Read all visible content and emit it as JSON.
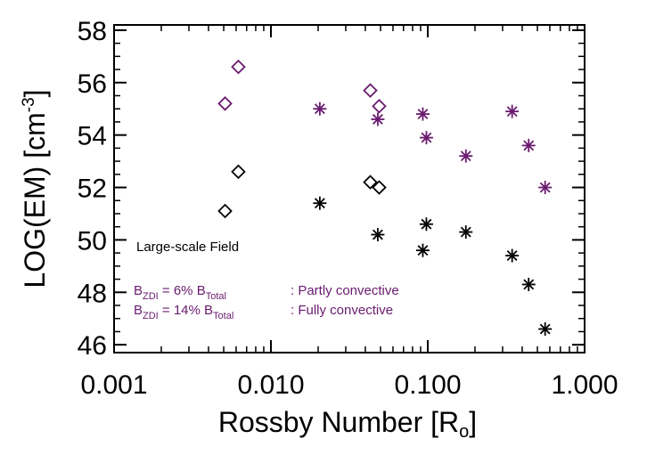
{
  "chart_data": {
    "type": "scatter",
    "xscale": "log",
    "xlim": [
      0.001,
      1.0
    ],
    "ylim": [
      45.7,
      58.2
    ],
    "xticks": [
      0.001,
      0.01,
      0.1,
      1.0
    ],
    "xtick_labels": [
      "0.001",
      "0.010",
      "0.100",
      "1.000"
    ],
    "yticks": [
      46,
      48,
      50,
      52,
      54,
      56,
      58
    ],
    "ytick_labels": [
      "46",
      "48",
      "50",
      "52",
      "54",
      "56",
      "58"
    ],
    "xlabel": "Rossby Number [R",
    "xlabel_sub": "o",
    "xlabel_end": "]",
    "ylabel": "LOG(EM) [cm",
    "ylabel_sup": "-3",
    "ylabel_end": "]",
    "series": [
      {
        "name": "Partly convective (large-scale field)",
        "color": "#000000",
        "marker": "asterisk",
        "points": [
          {
            "x": 0.0205,
            "y": 51.4
          },
          {
            "x": 0.048,
            "y": 50.2
          },
          {
            "x": 0.093,
            "y": 49.6
          },
          {
            "x": 0.098,
            "y": 50.6
          },
          {
            "x": 0.175,
            "y": 50.3
          },
          {
            "x": 0.345,
            "y": 49.4
          },
          {
            "x": 0.44,
            "y": 48.3
          },
          {
            "x": 0.56,
            "y": 46.6
          }
        ]
      },
      {
        "name": "Fully convective (large-scale field)",
        "color": "#000000",
        "marker": "diamond",
        "points": [
          {
            "x": 0.0051,
            "y": 51.1
          },
          {
            "x": 0.0062,
            "y": 52.6
          },
          {
            "x": 0.043,
            "y": 52.2
          },
          {
            "x": 0.049,
            "y": 52.0
          }
        ]
      },
      {
        "name": "Partly convective (total field)",
        "color": "#6a1b6f",
        "marker": "asterisk",
        "points": [
          {
            "x": 0.0205,
            "y": 55.0
          },
          {
            "x": 0.048,
            "y": 54.6
          },
          {
            "x": 0.093,
            "y": 54.8
          },
          {
            "x": 0.098,
            "y": 53.9
          },
          {
            "x": 0.175,
            "y": 53.2
          },
          {
            "x": 0.345,
            "y": 54.9
          },
          {
            "x": 0.44,
            "y": 53.6
          },
          {
            "x": 0.56,
            "y": 52.0
          }
        ]
      },
      {
        "name": "Fully convective (total field)",
        "color": "#6a1b6f",
        "marker": "diamond",
        "points": [
          {
            "x": 0.0051,
            "y": 55.2
          },
          {
            "x": 0.0062,
            "y": 56.6
          },
          {
            "x": 0.043,
            "y": 55.7
          },
          {
            "x": 0.049,
            "y": 55.1
          }
        ]
      }
    ],
    "annotations": {
      "large_scale": "Large-scale Field",
      "line1": {
        "b": "B",
        "sub1": "ZDI",
        "mid": " = 6% B",
        "sub2": "Total",
        "desc": ": Partly convective"
      },
      "line2": {
        "b": "B",
        "sub1": "ZDI",
        "mid": " = 14% B",
        "sub2": "Total",
        "desc": ": Fully convective"
      }
    },
    "colors": {
      "black": "#000000",
      "purple": "#6a1b6f"
    }
  }
}
